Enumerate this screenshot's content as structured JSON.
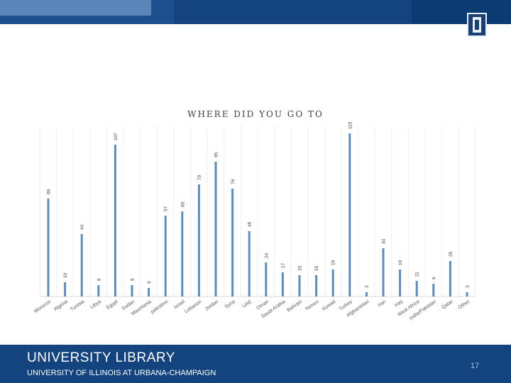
{
  "slide": {
    "title": "WHERE DID YOU GO TO",
    "page_number": "17"
  },
  "footer": {
    "library": "UNIVERSITY LIBRARY",
    "university": "UNIVERSITY OF ILLINOIS AT URBANA-CHAMPAIGN"
  },
  "logo": {
    "icon": "illinois-block-i-icon"
  },
  "colors": {
    "top_band": "#1b4f8e",
    "footer": "#13447f",
    "bar": "#5b8dc1"
  },
  "chart_data": {
    "type": "bar",
    "title": "WHERE DID YOU GO TO",
    "categories": [
      "Morocco",
      "Algeria",
      "Tunisia",
      "Libya",
      "Egypt",
      "Sudan",
      "Mauritania",
      "palestine",
      "Israel",
      "Lebanon",
      "Jordan",
      "Syria",
      "UAE",
      "Oman",
      "Saudi Arabia",
      "Bahrain",
      "Yemen",
      "Kuwait",
      "Turkey",
      "Afghanistan",
      "Iran",
      "Iraq",
      "West Africa",
      "India/Pakistan",
      "Qatar",
      "Other"
    ],
    "values": [
      69,
      10,
      44,
      8,
      107,
      8,
      6,
      57,
      60,
      79,
      95,
      76,
      46,
      24,
      17,
      15,
      15,
      19,
      115,
      3,
      34,
      19,
      11,
      9,
      25,
      3
    ],
    "ylim": [
      0,
      125
    ],
    "grid": false,
    "legend": "none"
  }
}
